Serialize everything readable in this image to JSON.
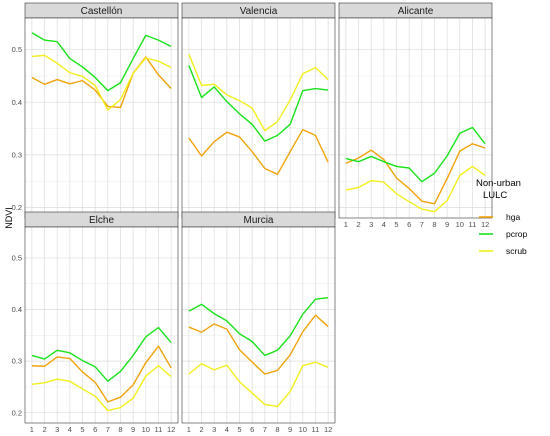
{
  "chart_data": {
    "type": "line",
    "layout": "facet-grid",
    "ylabel": "NDVI",
    "xlabel": "",
    "x": [
      1,
      2,
      3,
      4,
      5,
      6,
      7,
      8,
      9,
      10,
      11,
      12
    ],
    "ylim": [
      0.18,
      0.56
    ],
    "yticks": [
      0.2,
      0.3,
      0.4,
      0.5
    ],
    "grid": true,
    "legend": {
      "title_lines": [
        "Non-urban",
        "LULC"
      ],
      "placement": "right",
      "entries": [
        {
          "name": "hga",
          "color": "#F0A30A"
        },
        {
          "name": "pcrop",
          "color": "#19E21A"
        },
        {
          "name": "scrub",
          "color": "#F2EF1C"
        }
      ]
    },
    "panels": [
      {
        "title": "Castellón",
        "series": [
          {
            "name": "hga",
            "values": [
              0.447,
              0.434,
              0.443,
              0.435,
              0.441,
              0.423,
              0.392,
              0.39,
              0.455,
              0.486,
              0.452,
              0.426
            ]
          },
          {
            "name": "pcrop",
            "values": [
              0.532,
              0.518,
              0.515,
              0.483,
              0.467,
              0.447,
              0.422,
              0.437,
              0.483,
              0.527,
              0.518,
              0.506
            ]
          },
          {
            "name": "scrub",
            "values": [
              0.487,
              0.489,
              0.474,
              0.456,
              0.449,
              0.432,
              0.385,
              0.405,
              0.455,
              0.484,
              0.478,
              0.466
            ]
          }
        ]
      },
      {
        "title": "Valencia",
        "series": [
          {
            "name": "hga",
            "values": [
              0.332,
              0.298,
              0.325,
              0.343,
              0.334,
              0.306,
              0.274,
              0.263,
              0.306,
              0.348,
              0.337,
              0.286
            ]
          },
          {
            "name": "pcrop",
            "values": [
              0.47,
              0.409,
              0.429,
              0.401,
              0.378,
              0.358,
              0.326,
              0.337,
              0.358,
              0.422,
              0.426,
              0.423
            ]
          },
          {
            "name": "scrub",
            "values": [
              0.491,
              0.432,
              0.434,
              0.414,
              0.403,
              0.389,
              0.346,
              0.363,
              0.404,
              0.454,
              0.466,
              0.443
            ]
          }
        ]
      },
      {
        "title": "Alicante",
        "series": [
          {
            "name": "hga",
            "values": [
              0.284,
              0.294,
              0.309,
              0.291,
              0.256,
              0.236,
              0.212,
              0.207,
              0.255,
              0.307,
              0.321,
              0.313
            ]
          },
          {
            "name": "pcrop",
            "values": [
              0.293,
              0.287,
              0.297,
              0.287,
              0.278,
              0.275,
              0.249,
              0.265,
              0.298,
              0.341,
              0.352,
              0.321
            ]
          },
          {
            "name": "scrub",
            "values": [
              0.233,
              0.238,
              0.251,
              0.248,
              0.226,
              0.211,
              0.197,
              0.192,
              0.213,
              0.261,
              0.278,
              0.261
            ]
          }
        ]
      },
      {
        "title": "Elche",
        "series": [
          {
            "name": "hga",
            "values": [
              0.291,
              0.29,
              0.308,
              0.305,
              0.279,
              0.259,
              0.221,
              0.23,
              0.254,
              0.297,
              0.329,
              0.287
            ]
          },
          {
            "name": "pcrop",
            "values": [
              0.311,
              0.304,
              0.321,
              0.316,
              0.301,
              0.289,
              0.261,
              0.28,
              0.311,
              0.347,
              0.365,
              0.336
            ]
          },
          {
            "name": "scrub",
            "values": [
              0.255,
              0.258,
              0.265,
              0.261,
              0.246,
              0.232,
              0.204,
              0.21,
              0.228,
              0.271,
              0.291,
              0.27
            ]
          }
        ]
      },
      {
        "title": "Murcia",
        "series": [
          {
            "name": "hga",
            "values": [
              0.366,
              0.356,
              0.372,
              0.362,
              0.322,
              0.298,
              0.275,
              0.282,
              0.312,
              0.357,
              0.389,
              0.367
            ]
          },
          {
            "name": "pcrop",
            "values": [
              0.397,
              0.41,
              0.392,
              0.378,
              0.353,
              0.338,
              0.311,
              0.321,
              0.349,
              0.391,
              0.42,
              0.423
            ]
          },
          {
            "name": "scrub",
            "values": [
              0.275,
              0.295,
              0.283,
              0.292,
              0.26,
              0.238,
              0.216,
              0.212,
              0.241,
              0.291,
              0.298,
              0.288
            ]
          }
        ]
      }
    ]
  }
}
